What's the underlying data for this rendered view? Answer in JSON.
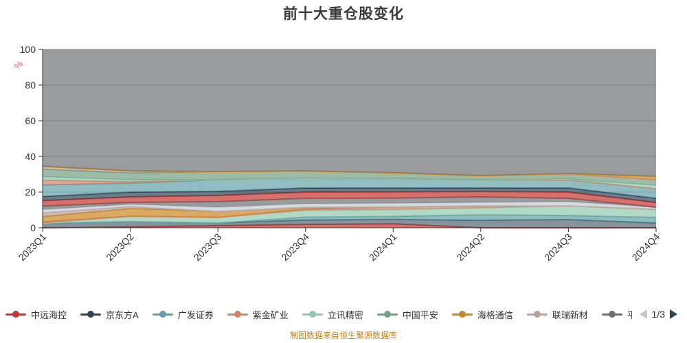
{
  "title": "前十大重仓股变化",
  "footer": "制图数据来自恒生聚源数据库",
  "chart_data": {
    "type": "area",
    "stacked": true,
    "title": "前十大重仓股变化",
    "ylabel": "%",
    "ylabel_color": "#e4606a",
    "ylim": [
      0,
      100
    ],
    "yticks": [
      0,
      20,
      40,
      60,
      80,
      100
    ],
    "grid": true,
    "legend_position": "bottom",
    "area_opacity": 0.7,
    "categories": [
      "2023Q1",
      "2023Q2",
      "2023Q3",
      "2023Q4",
      "2024Q1",
      "2024Q2",
      "2024Q3",
      "2024Q4"
    ],
    "series": [
      {
        "name": "",
        "color": "#c23531",
        "values": [
          0,
          0.5,
          1.2,
          1.9,
          2.2,
          0,
          0,
          0
        ]
      },
      {
        "name": "",
        "color": "#546570",
        "values": [
          2.5,
          3.0,
          1.5,
          2.5,
          2.5,
          4.2,
          4.6,
          2.7
        ]
      },
      {
        "name": "",
        "color": "#61a0a8",
        "values": [
          0,
          0,
          0,
          1.6,
          1.7,
          3.1,
          2.3,
          3.1
        ]
      },
      {
        "name": "",
        "color": "#91c7ae",
        "values": [
          0,
          3.0,
          3.1,
          3.7,
          3.8,
          3.8,
          5.4,
          4.6
        ]
      },
      {
        "name": "",
        "color": "#d48265",
        "values": [
          0.8,
          0,
          0,
          0.8,
          1.5,
          1.2,
          0,
          0
        ]
      },
      {
        "name": "海格通信",
        "color": "#ca8622",
        "values": [
          3.0,
          4.3,
          3.4,
          1.0,
          0,
          0,
          0,
          0
        ]
      },
      {
        "name": "联瑞新材",
        "color": "#bda29a",
        "values": [
          2.0,
          1.1,
          0,
          0,
          0,
          0,
          0,
          0
        ]
      },
      {
        "name": "",
        "color": "#c4ccd3",
        "values": [
          1.9,
          1.2,
          2.3,
          2.0,
          2.0,
          1.9,
          2.3,
          1.1
        ]
      },
      {
        "name": "",
        "color": "#6e7074",
        "values": [
          1.9,
          1.1,
          3.1,
          3.0,
          2.9,
          3.1,
          1.9,
          0
        ]
      },
      {
        "name": "中远海控",
        "color": "#c23531",
        "values": [
          3.1,
          3.1,
          3.5,
          3.5,
          3.5,
          3.1,
          3.5,
          2.7
        ]
      },
      {
        "name": "京东方A",
        "color": "#2f4554",
        "values": [
          2.3,
          2.7,
          2.3,
          2.3,
          2.2,
          1.9,
          2.3,
          2.3
        ]
      },
      {
        "name": "广发证券",
        "color": "#61a0a8",
        "values": [
          6.5,
          5.0,
          6.5,
          5.5,
          5.0,
          4.6,
          4.6,
          5.4
        ]
      },
      {
        "name": "紫金矿业",
        "color": "#d48265",
        "values": [
          2.7,
          0.8,
          0,
          0,
          0,
          0,
          0,
          0
        ]
      },
      {
        "name": "立讯精密",
        "color": "#91c7ae",
        "values": [
          1.9,
          1.1,
          0,
          0,
          0,
          0,
          0.4,
          1.9
        ]
      },
      {
        "name": "中国平安",
        "color": "#749f83",
        "values": [
          4.3,
          3.9,
          4.6,
          4.0,
          3.5,
          2.3,
          2.7,
          3.1
        ]
      },
      {
        "name": "",
        "color": "#bda29a",
        "values": [
          1.5,
          1.1,
          0,
          0,
          0,
          0,
          0,
          0
        ]
      },
      {
        "name": "",
        "color": "#ca8622",
        "values": [
          0,
          0,
          0,
          0,
          0,
          0,
          0.4,
          1.9
        ]
      }
    ],
    "background_fill": {
      "color": "#6e7074",
      "fill_to": 100
    }
  },
  "legend": {
    "items": [
      {
        "label": "中远海控",
        "color": "#c23531",
        "clipped": false
      },
      {
        "label": "京东方A",
        "color": "#2f4554",
        "clipped": false
      },
      {
        "label": "广发证券",
        "color": "#61a0a8",
        "clipped": false
      },
      {
        "label": "紫金矿业",
        "color": "#d48265",
        "clipped": false
      },
      {
        "label": "立讯精密",
        "color": "#91c7ae",
        "clipped": false
      },
      {
        "label": "中国平安",
        "color": "#749f83",
        "clipped": false
      },
      {
        "label": "海格通信",
        "color": "#ca8622",
        "clipped": false
      },
      {
        "label": "联瑞新材",
        "color": "#bda29a",
        "clipped": false
      },
      {
        "label": "平",
        "color": "#6e7074",
        "clipped": true
      }
    ],
    "pager": {
      "current": "1/3"
    }
  }
}
